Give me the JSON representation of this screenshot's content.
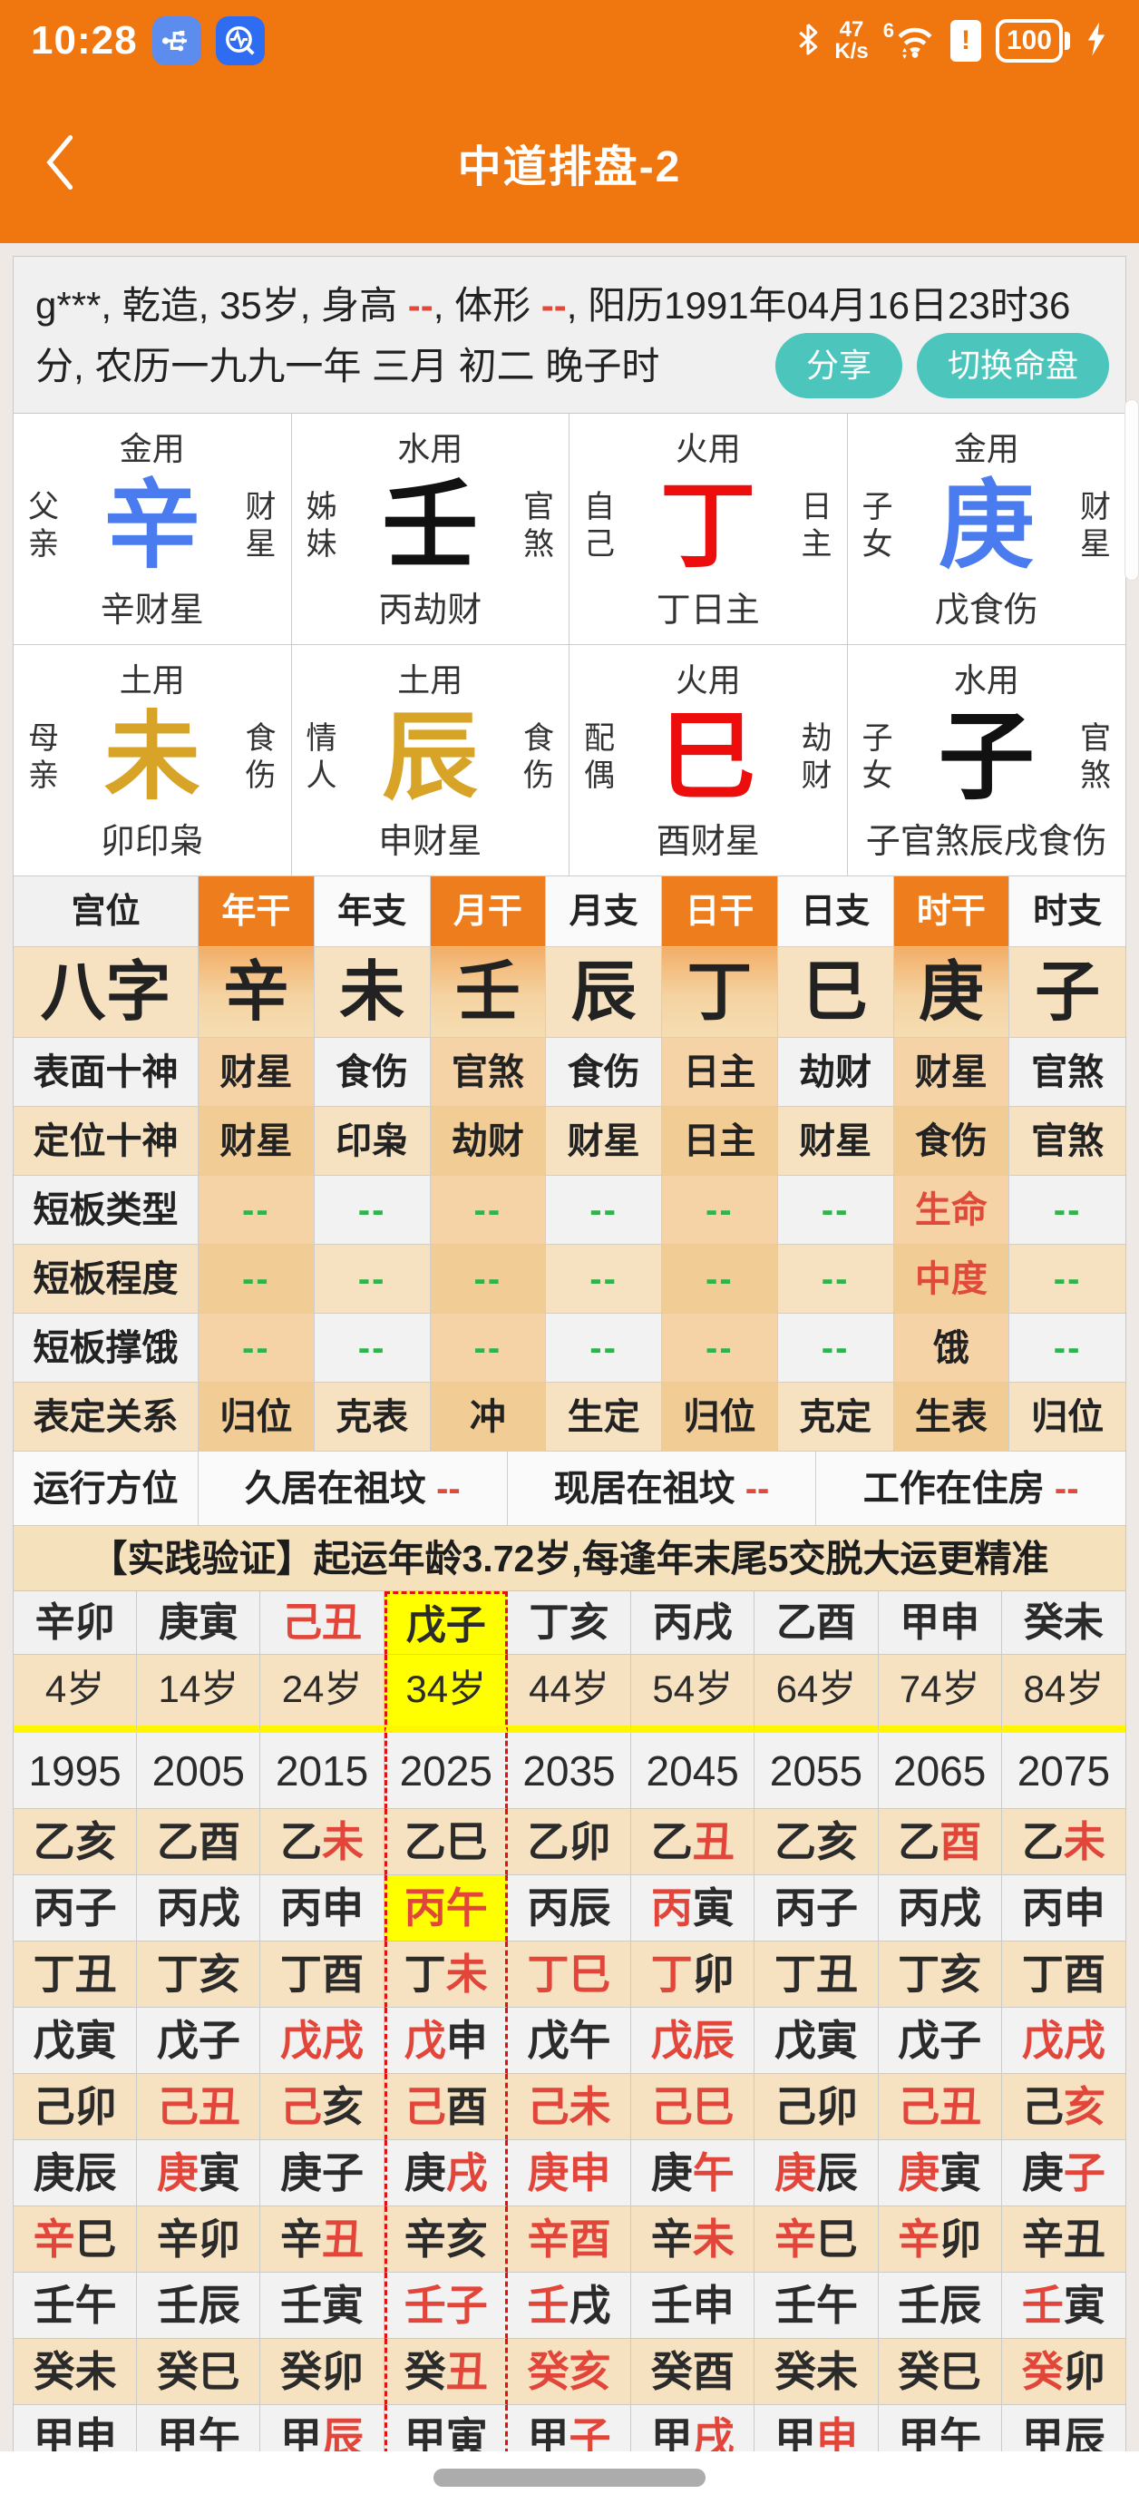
{
  "colors": {
    "accent_orange": "#F0760F",
    "teal_button": "#4CC5BD",
    "stem_blue": "#4A7CF0",
    "stem_red": "#EC0D0C",
    "branch_gold": "#D7A428",
    "alert_red": "#DF4A3A",
    "ok_green": "#2FB34A",
    "highlight_yellow": "#FFFF00",
    "cream_row": "#F6E2C0"
  },
  "status": {
    "time": "10:28",
    "net_speed": "47",
    "net_unit": "K/s",
    "wifi_gen": "6",
    "battery": "100"
  },
  "header": {
    "title": "中道排盘-2"
  },
  "info": {
    "seg_a": "g***, 乾造, 35岁, 身高 ",
    "dash1": "--",
    "seg_b": ", 体形 ",
    "dash2": "--",
    "seg_c": ", 阳历1991年04月16日23时36分, 农历一九九一年 三月 初二 晚子时"
  },
  "buttons": {
    "share": "分享",
    "switch": "切换命盘"
  },
  "pillars": [
    {
      "use": "金用",
      "rel": "父亲",
      "ch": "辛",
      "color": "blue",
      "god": "财星",
      "bottom": "辛财星"
    },
    {
      "use": "水用",
      "rel": "姊妹",
      "ch": "壬",
      "color": "black",
      "god": "官煞",
      "bottom": "丙劫财"
    },
    {
      "use": "火用",
      "rel": "自己",
      "ch": "丁",
      "color": "red",
      "god": "日主",
      "bottom": "丁日主"
    },
    {
      "use": "金用",
      "rel": "子女",
      "ch": "庚",
      "color": "blue",
      "god": "财星",
      "bottom": "戊食伤"
    },
    {
      "use": "土用",
      "rel": "母亲",
      "ch": "未",
      "color": "gold",
      "god": "食伤",
      "bottom": "卯印枭"
    },
    {
      "use": "土用",
      "rel": "情人",
      "ch": "辰",
      "color": "gold",
      "god": "食伤",
      "bottom": "申财星"
    },
    {
      "use": "火用",
      "rel": "配偶",
      "ch": "巳",
      "color": "red",
      "god": "劫财",
      "bottom": "酉财星"
    },
    {
      "use": "水用",
      "rel": "子女",
      "ch": "子",
      "color": "black",
      "god": "官煞",
      "bottom": "子官煞辰戌食伤"
    }
  ],
  "grid": {
    "corner": "宫位",
    "columns": [
      {
        "t": "年干",
        "hl": true
      },
      {
        "t": "年支"
      },
      {
        "t": "月干",
        "hl": true
      },
      {
        "t": "月支"
      },
      {
        "t": "日干",
        "hl": true
      },
      {
        "t": "日支"
      },
      {
        "t": "时干",
        "hl": true
      },
      {
        "t": "时支"
      }
    ],
    "rows": [
      {
        "label": "八字",
        "kind": "bazi",
        "cells": [
          "辛",
          "未",
          "壬",
          "辰",
          "丁",
          "巳",
          "庚",
          "子"
        ]
      },
      {
        "label": "表面十神",
        "cells": [
          "财星",
          "食伤",
          "官煞",
          "食伤",
          "日主",
          "劫财",
          "财星",
          "官煞"
        ]
      },
      {
        "label": "定位十神",
        "cells": [
          "财星",
          "印枭",
          "劫财",
          "财星",
          "日主",
          "财星",
          "食伤",
          "官煞"
        ]
      },
      {
        "label": "短板类型",
        "cells": [
          {
            "t": "--",
            "c": "g"
          },
          {
            "t": "--",
            "c": "g"
          },
          {
            "t": "--",
            "c": "g"
          },
          {
            "t": "--",
            "c": "g"
          },
          {
            "t": "--",
            "c": "g"
          },
          {
            "t": "--",
            "c": "g"
          },
          {
            "t": "生命",
            "c": "r"
          },
          {
            "t": "--",
            "c": "g"
          }
        ]
      },
      {
        "label": "短板程度",
        "cells": [
          {
            "t": "--",
            "c": "g"
          },
          {
            "t": "--",
            "c": "g"
          },
          {
            "t": "--",
            "c": "g"
          },
          {
            "t": "--",
            "c": "g"
          },
          {
            "t": "--",
            "c": "g"
          },
          {
            "t": "--",
            "c": "g"
          },
          {
            "t": "中度",
            "c": "r"
          },
          {
            "t": "--",
            "c": "g"
          }
        ]
      },
      {
        "label": "短板撑饿",
        "cells": [
          {
            "t": "--",
            "c": "g"
          },
          {
            "t": "--",
            "c": "g"
          },
          {
            "t": "--",
            "c": "g"
          },
          {
            "t": "--",
            "c": "g"
          },
          {
            "t": "--",
            "c": "g"
          },
          {
            "t": "--",
            "c": "g"
          },
          {
            "t": "饿"
          },
          {
            "t": "--",
            "c": "g"
          }
        ]
      },
      {
        "label": "表定关系",
        "cells": [
          "归位",
          "克表",
          "冲",
          "生定",
          "归位",
          "克定",
          "生表",
          "归位"
        ]
      }
    ],
    "fangwei": {
      "label": "运行方位",
      "cells": [
        {
          "t": "久居在祖坟",
          "dash": "--"
        },
        {
          "t": "现居在祖坟",
          "dash": "--"
        },
        {
          "t": "工作在住房",
          "dash": "--"
        }
      ]
    }
  },
  "banner": {
    "text": "【实践验证】起运年龄3.72岁,每逢年末尾5交脱大运更精准"
  },
  "luck": {
    "sel_col": 3,
    "pillars": [
      {
        "t": "辛卯"
      },
      {
        "t": "庚寅"
      },
      {
        "t": "己丑",
        "red": true
      },
      {
        "t": "戊子",
        "sel": true
      },
      {
        "t": "丁亥"
      },
      {
        "t": "丙戌"
      },
      {
        "t": "乙酉"
      },
      {
        "t": "甲申"
      },
      {
        "t": "癸未"
      }
    ],
    "ages": [
      "4岁",
      "14岁",
      "24岁",
      "34岁",
      "44岁",
      "54岁",
      "64岁",
      "74岁",
      "84岁"
    ],
    "start_years": [
      "1995",
      "2005",
      "2015",
      "2025",
      "2035",
      "2045",
      "2055",
      "2065",
      "2075"
    ],
    "year_rows": [
      [
        [
          "乙亥",
          "kk"
        ],
        [
          "乙酉",
          "kk"
        ],
        [
          "乙未",
          "kr"
        ],
        [
          "乙巳",
          "kk"
        ],
        [
          "乙卯",
          "kk"
        ],
        [
          "乙丑",
          "kr"
        ],
        [
          "乙亥",
          "kk"
        ],
        [
          "乙酉",
          "kr"
        ],
        [
          "乙未",
          "kr"
        ]
      ],
      [
        [
          "丙子",
          "kk"
        ],
        [
          "丙戌",
          "kk"
        ],
        [
          "丙申",
          "kk"
        ],
        [
          "丙午",
          "rr",
          1
        ],
        [
          "丙辰",
          "kk"
        ],
        [
          "丙寅",
          "rk"
        ],
        [
          "丙子",
          "kk"
        ],
        [
          "丙戌",
          "kk"
        ],
        [
          "丙申",
          "kk"
        ]
      ],
      [
        [
          "丁丑",
          "kk"
        ],
        [
          "丁亥",
          "kk"
        ],
        [
          "丁酉",
          "kk"
        ],
        [
          "丁未",
          "kr"
        ],
        [
          "丁巳",
          "rr"
        ],
        [
          "丁卯",
          "rk"
        ],
        [
          "丁丑",
          "kk"
        ],
        [
          "丁亥",
          "kk"
        ],
        [
          "丁酉",
          "kk"
        ]
      ],
      [
        [
          "戊寅",
          "kk"
        ],
        [
          "戊子",
          "kk"
        ],
        [
          "戊戌",
          "rr"
        ],
        [
          "戊申",
          "rk"
        ],
        [
          "戊午",
          "kk"
        ],
        [
          "戊辰",
          "rr"
        ],
        [
          "戊寅",
          "kk"
        ],
        [
          "戊子",
          "kk"
        ],
        [
          "戊戌",
          "rr"
        ]
      ],
      [
        [
          "己卯",
          "kk"
        ],
        [
          "己丑",
          "rr"
        ],
        [
          "己亥",
          "rk"
        ],
        [
          "己酉",
          "rk"
        ],
        [
          "己未",
          "rr"
        ],
        [
          "己巳",
          "rr"
        ],
        [
          "己卯",
          "kk"
        ],
        [
          "己丑",
          "rr"
        ],
        [
          "己亥",
          "kr"
        ]
      ],
      [
        [
          "庚辰",
          "kk"
        ],
        [
          "庚寅",
          "rk"
        ],
        [
          "庚子",
          "kk"
        ],
        [
          "庚戌",
          "kr"
        ],
        [
          "庚申",
          "rr"
        ],
        [
          "庚午",
          "kr"
        ],
        [
          "庚辰",
          "rk"
        ],
        [
          "庚寅",
          "rk"
        ],
        [
          "庚子",
          "kr"
        ]
      ],
      [
        [
          "辛巳",
          "rk"
        ],
        [
          "辛卯",
          "kk"
        ],
        [
          "辛丑",
          "kr"
        ],
        [
          "辛亥",
          "kk"
        ],
        [
          "辛酉",
          "rr"
        ],
        [
          "辛未",
          "kr"
        ],
        [
          "辛巳",
          "rk"
        ],
        [
          "辛卯",
          "rk"
        ],
        [
          "辛丑",
          "kk"
        ]
      ],
      [
        [
          "壬午",
          "kk"
        ],
        [
          "壬辰",
          "kk"
        ],
        [
          "壬寅",
          "kk"
        ],
        [
          "壬子",
          "rr"
        ],
        [
          "壬戌",
          "rk"
        ],
        [
          "壬申",
          "kk"
        ],
        [
          "壬午",
          "kk"
        ],
        [
          "壬辰",
          "kk"
        ],
        [
          "壬寅",
          "rk"
        ]
      ],
      [
        [
          "癸未",
          "kk"
        ],
        [
          "癸巳",
          "kk"
        ],
        [
          "癸卯",
          "kk"
        ],
        [
          "癸丑",
          "kr"
        ],
        [
          "癸亥",
          "rr"
        ],
        [
          "癸酉",
          "kk"
        ],
        [
          "癸未",
          "kk"
        ],
        [
          "癸巳",
          "kk"
        ],
        [
          "癸卯",
          "rk"
        ]
      ],
      [
        [
          "甲申",
          "kk"
        ],
        [
          "甲午",
          "kk"
        ],
        [
          "甲辰",
          "kr"
        ],
        [
          "甲寅",
          "kk"
        ],
        [
          "甲子",
          "kr"
        ],
        [
          "甲戌",
          "kr"
        ],
        [
          "甲申",
          "kr"
        ],
        [
          "甲午",
          "kk"
        ],
        [
          "甲辰",
          "kk"
        ]
      ]
    ]
  }
}
